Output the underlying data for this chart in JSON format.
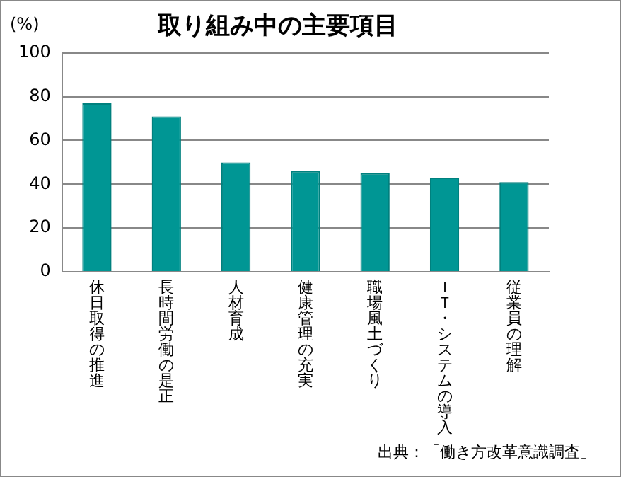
{
  "chart_data": {
    "type": "bar",
    "title": "取り組み中の主要項目",
    "ylabel": "(%)",
    "categories": [
      "休日取得の推進",
      "長時間労働の是正",
      "人材育成",
      "健康管理の充実",
      "職場風土づくり",
      "ＩＴ・システムの導入",
      "従業員の理解"
    ],
    "values": [
      77,
      71,
      50,
      46,
      45,
      43,
      41
    ],
    "color": "#009694",
    "ylim": [
      0,
      100
    ],
    "yticks": [
      0,
      20,
      40,
      60,
      80,
      100
    ],
    "grid": "y",
    "legend": false,
    "annotations": [
      "出典：「働き方改革意識調査」"
    ]
  }
}
